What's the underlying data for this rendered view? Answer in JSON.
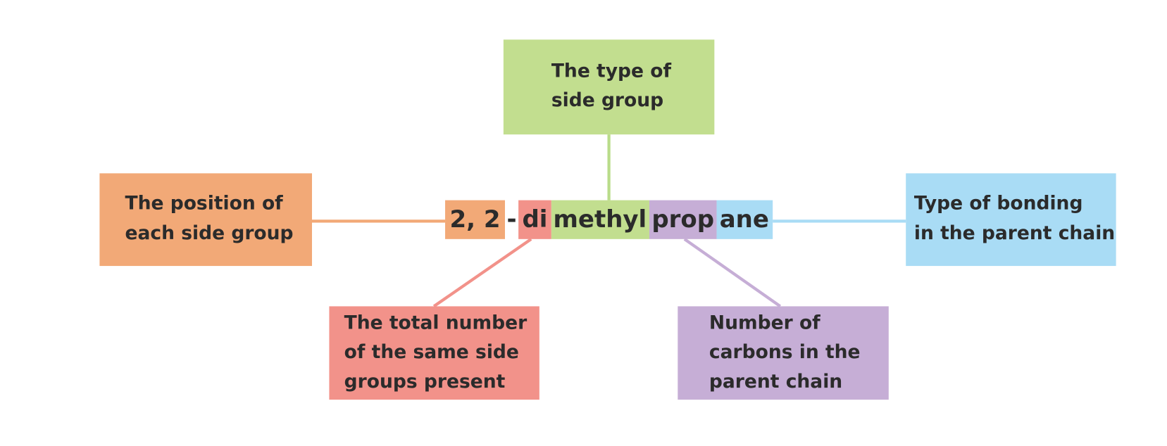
{
  "name_parts": [
    "2, 2",
    "-",
    "di",
    "methyl",
    "prop",
    "ane"
  ],
  "boxes": [
    {
      "lines": [
        "The type of",
        "side group"
      ]
    },
    {
      "lines": [
        "The position of",
        "each side group"
      ]
    },
    {
      "lines": [
        "Type of bonding",
        "in the parent chain"
      ]
    },
    {
      "lines": [
        "The total number",
        "of the same side",
        "groups present"
      ]
    },
    {
      "lines": [
        "Number of",
        "carbons in the",
        "parent chain"
      ]
    }
  ]
}
